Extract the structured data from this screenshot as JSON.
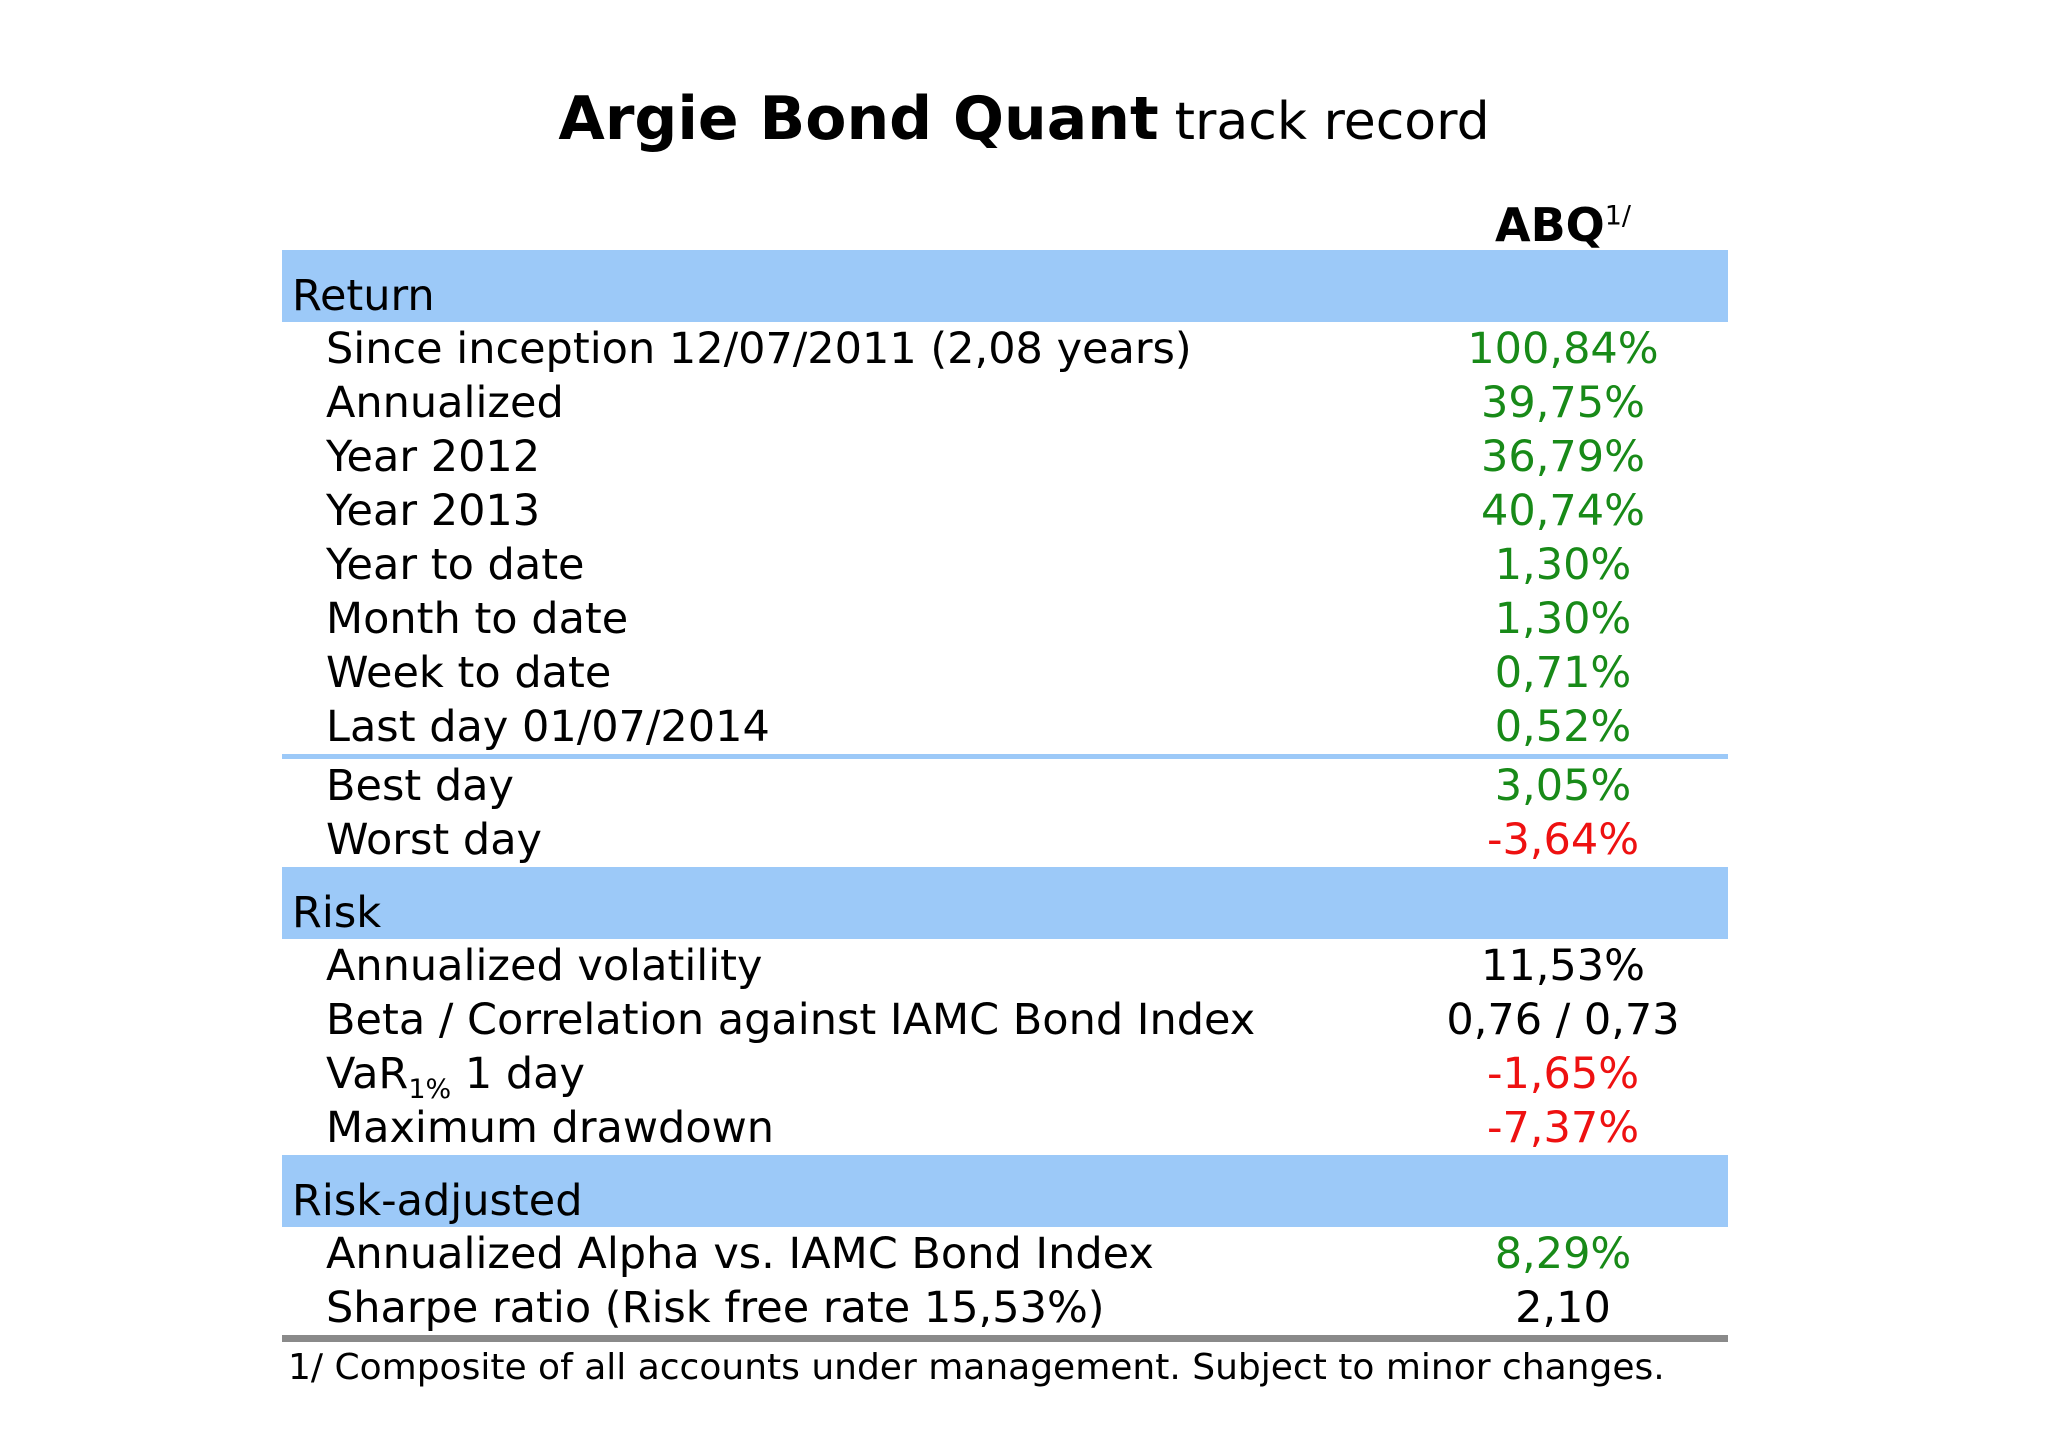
{
  "title": {
    "main": "Argie Bond Quant",
    "suffix": "track record"
  },
  "column_header": {
    "name": "ABQ",
    "superscript": "1/"
  },
  "sections": [
    {
      "label": "Return",
      "rows": [
        {
          "label": "Since inception 12/07/2011 (2,08 years)",
          "value": "100,84%",
          "color": "green"
        },
        {
          "label": "Annualized",
          "value": "39,75%",
          "color": "green"
        },
        {
          "label": "Year 2012",
          "value": "36,79%",
          "color": "green"
        },
        {
          "label": "Year 2013",
          "value": "40,74%",
          "color": "green"
        },
        {
          "label": "Year to date",
          "value": "1,30%",
          "color": "green"
        },
        {
          "label": "Month to date",
          "value": "1,30%",
          "color": "green"
        },
        {
          "label": "Week to date",
          "value": "0,71%",
          "color": "green"
        },
        {
          "label": "Last day 01/07/2014",
          "value": "0,52%",
          "color": "green"
        },
        {
          "divider": true
        },
        {
          "label": "Best day",
          "value": "3,05%",
          "color": "green"
        },
        {
          "label": "Worst day",
          "value": "-3,64%",
          "color": "red"
        }
      ]
    },
    {
      "label": "Risk",
      "rows": [
        {
          "label": "Annualized volatility",
          "value": "11,53%",
          "color": "black"
        },
        {
          "label": "Beta / Correlation against IAMC Bond Index",
          "value": "0,76 / 0,73",
          "color": "black"
        },
        {
          "label": "VaR",
          "label_sub": "1%",
          "label_rest": " 1 day",
          "value": "-1,65%",
          "color": "red"
        },
        {
          "label": "Maximum drawdown",
          "value": "-7,37%",
          "color": "red"
        }
      ]
    },
    {
      "label": "Risk-adjusted",
      "rows": [
        {
          "label": "Annualized Alpha vs. IAMC Bond Index",
          "value": "8,29%",
          "color": "green"
        },
        {
          "label": "Sharpe ratio (Risk free rate 15,53%)",
          "value": "2,10",
          "color": "black"
        }
      ]
    }
  ],
  "footnote": "1/ Composite of all accounts under management. Subject to minor changes.",
  "colors": {
    "band": "#9cc9f8",
    "green": "#188a18",
    "red": "#ee1111",
    "black": "#000000",
    "rule": "#8a8a8a"
  }
}
